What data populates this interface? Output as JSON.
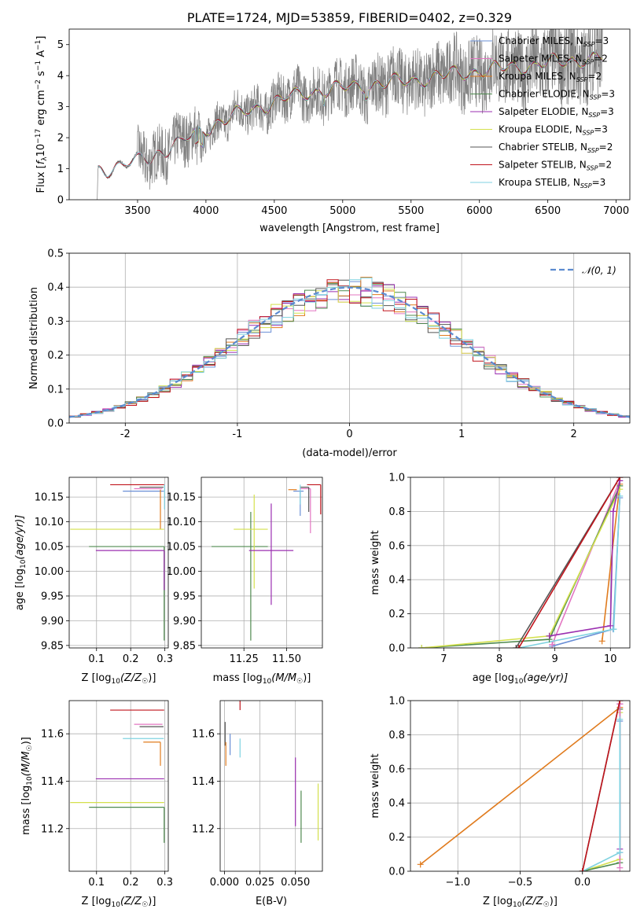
{
  "colors": {
    "chabrier_miles": "#6a8fd6",
    "salpeter_miles": "#e377c2",
    "kroupa_miles": "#e07b1e",
    "chabrier_elodie": "#4f8a4f",
    "salpeter_elodie": "#9b2fb0",
    "kroupa_elodie": "#d4e04c",
    "chabrier_stelib": "#555555",
    "salpeter_stelib": "#c0141c",
    "kroupa_stelib": "#7fd2e0",
    "spectrum": "#808080",
    "gaussian": "#5b8bd0"
  },
  "chart_data": [
    {
      "id": "spectrum",
      "type": "line",
      "title": "PLATE=1724, MJD=53859, FIBERID=0402, z=0.329",
      "xlabel": "wavelength [Angstrom, rest frame]",
      "ylabel_parts": [
        "Flux [",
        "f",
        "λ",
        "10",
        "−17",
        " erg cm",
        "−2",
        " s",
        "−1",
        " A",
        "−1",
        "]"
      ],
      "xlim": [
        3000,
        7100
      ],
      "ylim": [
        0,
        5.5
      ],
      "xticks": [
        3500,
        4000,
        4500,
        5000,
        5500,
        6000,
        6500,
        7000
      ],
      "yticks": [
        0,
        1,
        2,
        3,
        4,
        5
      ],
      "legend_position": "upper-right",
      "legend": [
        {
          "name": "Chabrier MILES",
          "n": "3",
          "color_key": "chabrier_miles"
        },
        {
          "name": "Salpeter MILES",
          "n": "2",
          "color_key": "salpeter_miles"
        },
        {
          "name": "Kroupa MILES",
          "n": "2",
          "color_key": "kroupa_miles"
        },
        {
          "name": "Chabrier ELODIE",
          "n": "3",
          "color_key": "chabrier_elodie"
        },
        {
          "name": "Salpeter ELODIE",
          "n": "3",
          "color_key": "salpeter_elodie"
        },
        {
          "name": "Kroupa ELODIE",
          "n": "3",
          "color_key": "kroupa_elodie"
        },
        {
          "name": "Chabrier STELIB",
          "n": "2",
          "color_key": "chabrier_stelib"
        },
        {
          "name": "Salpeter STELIB",
          "n": "2",
          "color_key": "salpeter_stelib"
        },
        {
          "name": "Kroupa STELIB",
          "n": "3",
          "color_key": "kroupa_stelib"
        }
      ],
      "n_prefix": "N",
      "n_sub": "SSP",
      "continuum_x": [
        3200,
        3400,
        3600,
        3800,
        4000,
        4200,
        4400,
        4600,
        4800,
        5000,
        5200,
        5400,
        5600,
        5800,
        6000,
        6200,
        6400,
        6600,
        6800,
        7000
      ],
      "continuum_y": [
        0.95,
        1.1,
        1.4,
        1.8,
        2.3,
        2.7,
        3.0,
        3.3,
        3.5,
        3.6,
        3.7,
        3.8,
        3.9,
        4.05,
        4.15,
        4.25,
        4.35,
        4.45,
        4.55,
        4.6
      ]
    },
    {
      "id": "residual-histogram",
      "type": "histogram",
      "xlabel": "(data-model)/error",
      "ylabel": "Normed distribution",
      "xlim": [
        -2.5,
        2.5
      ],
      "ylim": [
        0,
        0.5
      ],
      "xticks": [
        -2,
        -1,
        0,
        1,
        2
      ],
      "yticks": [
        0.0,
        0.1,
        0.2,
        0.3,
        0.4,
        0.5
      ],
      "grid": true,
      "bin_width": 0.1,
      "legend_position": "upper-right",
      "gaussian_label": "𝒩(0, 1)"
    },
    {
      "id": "age-vs-z",
      "type": "errorbar",
      "xlabel_parts": [
        "Z [log",
        "10",
        "(Z/Z",
        "☉",
        ")]"
      ],
      "ylabel_parts": [
        "age  [log",
        "10",
        "(age/yr)]"
      ],
      "xlim": [
        0.02,
        0.31
      ],
      "ylim": [
        9.845,
        10.19
      ],
      "xticks": [
        0.1,
        0.2,
        0.3
      ],
      "xtick_labels": [
        "0.1",
        "0.2",
        "0.3"
      ],
      "yticks": [
        9.85,
        9.9,
        9.95,
        10.0,
        10.05,
        10.1,
        10.15
      ],
      "ytick_labels": [
        "9.85",
        "9.90",
        "9.95",
        "10.00",
        "10.05",
        "10.10",
        "10.15"
      ],
      "grid": true,
      "bars": [
        {
          "c": "salpeter_stelib",
          "x": 0.298,
          "xerr": [
            0.158,
            0.0
          ],
          "y": 10.175,
          "yerr": [
            0.0,
            0.0
          ]
        },
        {
          "c": "chabrier_stelib",
          "x": 0.296,
          "xerr": [
            0.07,
            0.0
          ],
          "y": 10.17,
          "yerr": [
            0.0,
            0.0
          ]
        },
        {
          "c": "salpeter_miles",
          "x": 0.293,
          "xerr": [
            0.083,
            0.0
          ],
          "y": 10.167,
          "yerr": [
            0.0,
            0.0
          ]
        },
        {
          "c": "chabrier_miles",
          "x": 0.297,
          "xerr": [
            0.12,
            0.0
          ],
          "y": 10.162,
          "yerr": [
            0.0,
            0.0
          ]
        },
        {
          "c": "kroupa_miles",
          "x": 0.287,
          "xerr": [
            0.0,
            0.0
          ],
          "y": 10.165,
          "yerr": [
            0.08,
            0.0
          ]
        },
        {
          "c": "kroupa_stelib",
          "x": 0.299,
          "xerr": [
            0.0,
            0.0
          ],
          "y": 10.175,
          "yerr": [
            0.05,
            0.0
          ]
        },
        {
          "c": "kroupa_elodie",
          "x": 0.298,
          "xerr": [
            0.275,
            0.0
          ],
          "y": 10.085,
          "yerr": [
            0.0,
            0.0
          ]
        },
        {
          "c": "chabrier_elodie",
          "x": 0.298,
          "xerr": [
            0.22,
            0.0
          ],
          "y": 10.05,
          "yerr": [
            0.19,
            0.0
          ]
        },
        {
          "c": "salpeter_elodie",
          "x": 0.298,
          "xerr": [
            0.2,
            0.0
          ],
          "y": 10.042,
          "yerr": [
            0.08,
            0.0
          ]
        }
      ]
    },
    {
      "id": "age-vs-mass",
      "type": "errorbar",
      "xlabel_parts": [
        "mass [log",
        "10",
        "(M/M",
        "☉",
        ")]"
      ],
      "xlim": [
        11.0,
        11.71
      ],
      "ylim": [
        9.845,
        10.19
      ],
      "xticks": [
        11.25,
        11.5
      ],
      "xtick_labels": [
        "11.25",
        "11.50"
      ],
      "yticks": [
        9.85,
        9.9,
        9.95,
        10.0,
        10.05,
        10.1,
        10.15
      ],
      "ytick_labels": [
        "9.85",
        "9.90",
        "9.95",
        "10.00",
        "10.05",
        "10.10",
        "10.15"
      ],
      "grid": true,
      "bars": [
        {
          "c": "chabrier_elodie",
          "x": 11.29,
          "xerr": [
            0.23,
            0.1
          ],
          "y": 10.05,
          "yerr": [
            0.19,
            0.07
          ]
        },
        {
          "c": "kroupa_elodie",
          "x": 11.31,
          "xerr": [
            0.12,
            0.08
          ],
          "y": 10.085,
          "yerr": [
            0.12,
            0.07
          ]
        },
        {
          "c": "salpeter_elodie",
          "x": 11.41,
          "xerr": [
            0.13,
            0.13
          ],
          "y": 10.042,
          "yerr": [
            0.11,
            0.095
          ]
        },
        {
          "c": "kroupa_miles",
          "x": 11.56,
          "xerr": [
            0.05,
            0.0
          ],
          "y": 10.165,
          "yerr": [
            0.0,
            0.0
          ]
        },
        {
          "c": "chabrier_miles",
          "x": 11.58,
          "xerr": [
            0.04,
            0.02
          ],
          "y": 10.162,
          "yerr": [
            0.05,
            0.0
          ]
        },
        {
          "c": "salpeter_miles",
          "x": 11.64,
          "xerr": [
            0.06,
            0.0
          ],
          "y": 10.167,
          "yerr": [
            0.09,
            0.0
          ]
        },
        {
          "c": "chabrier_stelib",
          "x": 11.63,
          "xerr": [
            0.05,
            0.0
          ],
          "y": 10.17,
          "yerr": [
            0.05,
            0.0
          ]
        },
        {
          "c": "salpeter_stelib",
          "x": 11.7,
          "xerr": [
            0.08,
            0.0
          ],
          "y": 10.175,
          "yerr": [
            0.06,
            0.0
          ]
        },
        {
          "c": "kroupa_stelib",
          "x": 11.58,
          "xerr": [
            0.0,
            0.0
          ],
          "y": 10.175,
          "yerr": [
            0.04,
            0.0
          ]
        }
      ]
    },
    {
      "id": "mass-weight-vs-age",
      "type": "line",
      "xlabel_parts": [
        "age  [log",
        "10",
        "(age/yr)]"
      ],
      "ylabel": "mass weight",
      "xlim": [
        6.4,
        10.35
      ],
      "ylim": [
        0,
        1.0
      ],
      "xticks": [
        7,
        8,
        9,
        10
      ],
      "yticks": [
        0.0,
        0.2,
        0.4,
        0.6,
        0.8,
        1.0
      ],
      "grid": true,
      "series": [
        {
          "c": "kroupa_miles",
          "x": [
            9.85,
            10.17
          ],
          "y": [
            0.04,
            0.96
          ]
        },
        {
          "c": "chabrier_miles",
          "x": [
            8.95,
            10.05,
            10.17
          ],
          "y": [
            0.01,
            0.11,
            0.88
          ]
        },
        {
          "c": "salpeter_miles",
          "x": [
            8.95,
            10.17
          ],
          "y": [
            0.02,
            0.98
          ]
        },
        {
          "c": "kroupa_stelib",
          "x": [
            8.35,
            10.06,
            10.17
          ],
          "y": [
            0.0,
            0.11,
            0.89
          ]
        },
        {
          "c": "chabrier_elodie",
          "x": [
            6.6,
            8.9,
            10.17
          ],
          "y": [
            0.0,
            0.05,
            0.95
          ]
        },
        {
          "c": "kroupa_elodie",
          "x": [
            6.6,
            8.9,
            10.17
          ],
          "y": [
            0.0,
            0.07,
            0.93
          ]
        },
        {
          "c": "salpeter_elodie",
          "x": [
            8.9,
            10.0,
            10.05,
            10.17
          ],
          "y": [
            0.07,
            0.13,
            0.8,
            0.98
          ]
        },
        {
          "c": "chabrier_stelib",
          "x": [
            8.3,
            10.17
          ],
          "y": [
            0.0,
            1.0
          ]
        },
        {
          "c": "salpeter_stelib",
          "x": [
            8.35,
            10.17
          ],
          "y": [
            0.0,
            1.0
          ]
        }
      ]
    },
    {
      "id": "mass-vs-z",
      "type": "errorbar",
      "xlabel_parts": [
        "Z [log",
        "10",
        "(Z/Z",
        "☉",
        ")]"
      ],
      "ylabel_parts": [
        "mass [log",
        "10",
        "(M/M",
        "☉",
        ")]"
      ],
      "xlim": [
        0.02,
        0.31
      ],
      "ylim": [
        11.02,
        11.74
      ],
      "xticks": [
        0.1,
        0.2,
        0.3
      ],
      "xtick_labels": [
        "0.1",
        "0.2",
        "0.3"
      ],
      "yticks": [
        11.2,
        11.4,
        11.6
      ],
      "ytick_labels": [
        "11.2",
        "11.4",
        "11.6"
      ],
      "grid": true,
      "bars": [
        {
          "c": "salpeter_stelib",
          "x": 0.298,
          "xerr": [
            0.158,
            0.0
          ],
          "y": 11.7,
          "yerr": [
            0.0,
            0.0
          ]
        },
        {
          "c": "salpeter_miles",
          "x": 0.293,
          "xerr": [
            0.083,
            0.0
          ],
          "y": 11.64,
          "yerr": [
            0.0,
            0.0
          ]
        },
        {
          "c": "chabrier_stelib",
          "x": 0.296,
          "xerr": [
            0.07,
            0.0
          ],
          "y": 11.63,
          "yerr": [
            0.0,
            0.0
          ]
        },
        {
          "c": "kroupa_stelib",
          "x": 0.297,
          "xerr": [
            0.12,
            0.0
          ],
          "y": 11.58,
          "yerr": [
            0.0,
            0.0
          ]
        },
        {
          "c": "kroupa_miles",
          "x": 0.287,
          "xerr": [
            0.05,
            0.0
          ],
          "y": 11.565,
          "yerr": [
            0.1,
            0.0
          ]
        },
        {
          "c": "salpeter_elodie",
          "x": 0.298,
          "xerr": [
            0.2,
            0.0
          ],
          "y": 11.41,
          "yerr": [
            0.0,
            0.0
          ]
        },
        {
          "c": "kroupa_elodie",
          "x": 0.298,
          "xerr": [
            0.275,
            0.0
          ],
          "y": 11.31,
          "yerr": [
            0.0,
            0.0
          ]
        },
        {
          "c": "chabrier_elodie",
          "x": 0.298,
          "xerr": [
            0.22,
            0.0
          ],
          "y": 11.29,
          "yerr": [
            0.15,
            0.0
          ]
        }
      ]
    },
    {
      "id": "mass-vs-ebv",
      "type": "errorbar",
      "xlabel": "E(B-V)",
      "xlim": [
        -0.003,
        0.069
      ],
      "ylim": [
        11.02,
        11.74
      ],
      "xticks": [
        0.0,
        0.025,
        0.05
      ],
      "xtick_labels": [
        "0.000",
        "0.025",
        "0.050"
      ],
      "yticks": [
        11.2,
        11.4,
        11.6
      ],
      "ytick_labels": [
        "11.2",
        "11.4",
        "11.6"
      ],
      "grid": true,
      "bars": [
        {
          "c": "salpeter_stelib",
          "x": 0.011,
          "xerr": [
            0.0,
            0.0
          ],
          "y": 11.7,
          "yerr": [
            0.0,
            0.06
          ]
        },
        {
          "c": "chabrier_stelib",
          "x": 0.0005,
          "xerr": [
            0.0,
            0.0
          ],
          "y": 11.63,
          "yerr": [
            0.08,
            0.02
          ]
        },
        {
          "c": "kroupa_miles",
          "x": 0.001,
          "xerr": [
            0.0,
            0.0
          ],
          "y": 11.565,
          "yerr": [
            0.1,
            0.0
          ]
        },
        {
          "c": "chabrier_miles",
          "x": 0.004,
          "xerr": [
            0.0,
            0.0
          ],
          "y": 11.58,
          "yerr": [
            0.07,
            0.02
          ]
        },
        {
          "c": "kroupa_stelib",
          "x": 0.011,
          "xerr": [
            0.0,
            0.0
          ],
          "y": 11.58,
          "yerr": [
            0.08,
            0.0
          ]
        },
        {
          "c": "salpeter_elodie",
          "x": 0.05,
          "xerr": [
            0.0,
            0.0
          ],
          "y": 11.41,
          "yerr": [
            0.2,
            0.09
          ]
        },
        {
          "c": "chabrier_elodie",
          "x": 0.054,
          "xerr": [
            0.0,
            0.0
          ],
          "y": 11.29,
          "yerr": [
            0.15,
            0.07
          ]
        },
        {
          "c": "kroupa_elodie",
          "x": 0.066,
          "xerr": [
            0.0,
            0.0
          ],
          "y": 11.31,
          "yerr": [
            0.16,
            0.08
          ]
        }
      ]
    },
    {
      "id": "mass-weight-vs-z",
      "type": "line",
      "xlabel_parts": [
        "Z [log",
        "10",
        "(Z/Z",
        "☉",
        ")]"
      ],
      "ylabel": "mass weight",
      "xlim": [
        -1.38,
        0.38
      ],
      "ylim": [
        0,
        1.0
      ],
      "xticks": [
        -1.0,
        -0.5,
        0.0
      ],
      "xtick_labels": [
        "−1.0",
        "−0.5",
        "0.0"
      ],
      "yticks": [
        0.0,
        0.2,
        0.4,
        0.6,
        0.8,
        1.0
      ],
      "grid": true,
      "series": [
        {
          "c": "kroupa_miles",
          "x": [
            -1.3,
            0.3
          ],
          "y": [
            0.04,
            0.96
          ]
        },
        {
          "c": "kroupa_elodie",
          "x": [
            0.0,
            0.3,
            0.3
          ],
          "y": [
            0.0,
            0.07,
            0.93
          ]
        },
        {
          "c": "chabrier_elodie",
          "x": [
            0.0,
            0.3,
            0.3
          ],
          "y": [
            0.0,
            0.05,
            0.95
          ]
        },
        {
          "c": "salpeter_elodie",
          "x": [
            0.3,
            0.3
          ],
          "y": [
            0.13,
            0.98
          ]
        },
        {
          "c": "salpeter_miles",
          "x": [
            0.3,
            0.3
          ],
          "y": [
            0.02,
            0.98
          ]
        },
        {
          "c": "chabrier_miles",
          "x": [
            0.3,
            0.3
          ],
          "y": [
            0.11,
            0.88
          ]
        },
        {
          "c": "kroupa_stelib",
          "x": [
            0.0,
            0.3,
            0.3
          ],
          "y": [
            0.0,
            0.11,
            0.89
          ]
        },
        {
          "c": "chabrier_stelib",
          "x": [
            0.0,
            0.3
          ],
          "y": [
            0.0,
            1.0
          ]
        },
        {
          "c": "salpeter_stelib",
          "x": [
            0.0,
            0.3
          ],
          "y": [
            0.0,
            1.0
          ]
        }
      ]
    }
  ]
}
